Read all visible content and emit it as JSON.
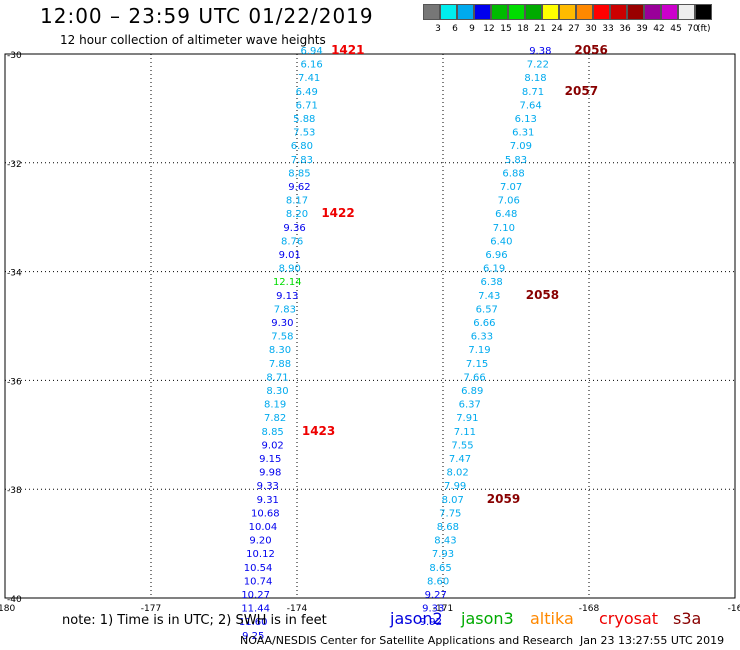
{
  "header": {
    "title": "12:00 – 23:59 UTC 01/22/2019",
    "subtitle": "12 hour collection of altimeter wave heights"
  },
  "scale": {
    "colors": [
      "#777777",
      "#00eeee",
      "#00aaee",
      "#0000ee",
      "#00bb00",
      "#00dd00",
      "#00aa00",
      "#ffff00",
      "#ffbb00",
      "#ff8800",
      "#ff0000",
      "#cc0000",
      "#990000",
      "#990099",
      "#cc00cc",
      "#eeeeee",
      "#000000"
    ],
    "labels": [
      "3",
      "6",
      "9",
      "12",
      "15",
      "18",
      "21",
      "24",
      "27",
      "30",
      "33",
      "36",
      "39",
      "42",
      "45",
      "70"
    ],
    "unit": "(ft)"
  },
  "chart_data": {
    "type": "scatter",
    "x_ticks": [
      "-180",
      "-177",
      "-174",
      "-171",
      "-168",
      "-16"
    ],
    "y_ticks": [
      "-30",
      "-32",
      "-34",
      "-36",
      "-38",
      "-40"
    ],
    "xlim": [
      -180,
      -165
    ],
    "ylim": [
      -40,
      -30
    ],
    "grid": "dotted",
    "tracks": [
      {
        "points": [
          {
            "lon": -173.7,
            "lat": -30.0,
            "v": "6.94",
            "c": "#00aaee"
          },
          {
            "lon": -173.7,
            "lat": -30.25,
            "v": "6.16",
            "c": "#00aaee"
          },
          {
            "lon": -173.75,
            "lat": -30.5,
            "v": "7.41",
            "c": "#00aaee"
          },
          {
            "lon": -173.8,
            "lat": -30.75,
            "v": "6.49",
            "c": "#00aaee"
          },
          {
            "lon": -173.8,
            "lat": -31.0,
            "v": "6.71",
            "c": "#00aaee"
          },
          {
            "lon": -173.85,
            "lat": -31.25,
            "v": "5.88",
            "c": "#00aaee"
          },
          {
            "lon": -173.85,
            "lat": -31.5,
            "v": "7.53",
            "c": "#00aaee"
          },
          {
            "lon": -173.9,
            "lat": -31.75,
            "v": "6.80",
            "c": "#00aaee"
          },
          {
            "lon": -173.9,
            "lat": -32.0,
            "v": "7.83",
            "c": "#00aaee"
          },
          {
            "lon": -173.95,
            "lat": -32.25,
            "v": "8.85",
            "c": "#00aaee"
          },
          {
            "lon": -173.95,
            "lat": -32.5,
            "v": "9.62",
            "c": "#0000ee"
          },
          {
            "lon": -174.0,
            "lat": -32.75,
            "v": "8.17",
            "c": "#00aaee"
          },
          {
            "lon": -174.0,
            "lat": -33.0,
            "v": "8.20",
            "c": "#00aaee"
          },
          {
            "lon": -174.05,
            "lat": -33.25,
            "v": "9.36",
            "c": "#0000ee"
          },
          {
            "lon": -174.1,
            "lat": -33.5,
            "v": "8.76",
            "c": "#00aaee"
          },
          {
            "lon": -174.15,
            "lat": -33.75,
            "v": "9.01",
            "c": "#0000ee"
          },
          {
            "lon": -174.15,
            "lat": -34.0,
            "v": "8.90",
            "c": "#00aaee"
          },
          {
            "lon": -174.2,
            "lat": -34.25,
            "v": "12.14",
            "c": "#00dd00"
          },
          {
            "lon": -174.2,
            "lat": -34.5,
            "v": "9.13",
            "c": "#0000ee"
          },
          {
            "lon": -174.25,
            "lat": -34.75,
            "v": "7.83",
            "c": "#00aaee"
          },
          {
            "lon": -174.3,
            "lat": -35.0,
            "v": "9.30",
            "c": "#0000ee"
          },
          {
            "lon": -174.3,
            "lat": -35.25,
            "v": "7.58",
            "c": "#00aaee"
          },
          {
            "lon": -174.35,
            "lat": -35.5,
            "v": "8.30",
            "c": "#00aaee"
          },
          {
            "lon": -174.35,
            "lat": -35.75,
            "v": "7.88",
            "c": "#00aaee"
          },
          {
            "lon": -174.4,
            "lat": -36.0,
            "v": "8.71",
            "c": "#00aaee"
          },
          {
            "lon": -174.4,
            "lat": -36.25,
            "v": "8.30",
            "c": "#00aaee"
          },
          {
            "lon": -174.45,
            "lat": -36.5,
            "v": "8.19",
            "c": "#00aaee"
          },
          {
            "lon": -174.45,
            "lat": -36.75,
            "v": "7.82",
            "c": "#00aaee"
          },
          {
            "lon": -174.5,
            "lat": -37.0,
            "v": "8.85",
            "c": "#00aaee"
          },
          {
            "lon": -174.5,
            "lat": -37.25,
            "v": "9.02",
            "c": "#0000ee"
          },
          {
            "lon": -174.55,
            "lat": -37.5,
            "v": "9.15",
            "c": "#0000ee"
          },
          {
            "lon": -174.55,
            "lat": -37.75,
            "v": "9.98",
            "c": "#0000ee"
          },
          {
            "lon": -174.6,
            "lat": -38.0,
            "v": "9.33",
            "c": "#0000ee"
          },
          {
            "lon": -174.6,
            "lat": -38.25,
            "v": "9.31",
            "c": "#0000ee"
          },
          {
            "lon": -174.65,
            "lat": -38.5,
            "v": "10.68",
            "c": "#0000ee"
          },
          {
            "lon": -174.7,
            "lat": -38.75,
            "v": "10.04",
            "c": "#0000ee"
          },
          {
            "lon": -174.75,
            "lat": -39.0,
            "v": "9.20",
            "c": "#0000ee"
          },
          {
            "lon": -174.75,
            "lat": -39.25,
            "v": "10.12",
            "c": "#0000ee"
          },
          {
            "lon": -174.8,
            "lat": -39.5,
            "v": "10.54",
            "c": "#0000ee"
          },
          {
            "lon": -174.8,
            "lat": -39.75,
            "v": "10.74",
            "c": "#0000ee"
          },
          {
            "lon": -174.85,
            "lat": -40.0,
            "v": "10.27",
            "c": "#0000ee"
          },
          {
            "lon": -174.85,
            "lat": -40.25,
            "v": "11.44",
            "c": "#0000ee"
          },
          {
            "lon": -174.9,
            "lat": -40.5,
            "v": "11.60",
            "c": "#0000ee"
          },
          {
            "lon": -174.9,
            "lat": -40.75,
            "v": "9.25",
            "c": "#0000ee"
          }
        ],
        "times": [
          {
            "label": "1421",
            "lon": -173.3,
            "lat": -30.0,
            "color": "#ee0000"
          },
          {
            "label": "1422",
            "lon": -173.5,
            "lat": -33.0,
            "color": "#ee0000"
          },
          {
            "label": "1423",
            "lon": -173.9,
            "lat": -37.0,
            "color": "#ee0000"
          }
        ]
      },
      {
        "points": [
          {
            "lon": -169.0,
            "lat": -30.0,
            "v": "9.38",
            "c": "#0000ee"
          },
          {
            "lon": -169.05,
            "lat": -30.25,
            "v": "7.22",
            "c": "#00aaee"
          },
          {
            "lon": -169.1,
            "lat": -30.5,
            "v": "8.18",
            "c": "#00aaee"
          },
          {
            "lon": -169.15,
            "lat": -30.75,
            "v": "8.71",
            "c": "#00aaee"
          },
          {
            "lon": -169.2,
            "lat": -31.0,
            "v": "7.64",
            "c": "#00aaee"
          },
          {
            "lon": -169.3,
            "lat": -31.25,
            "v": "6.13",
            "c": "#00aaee"
          },
          {
            "lon": -169.35,
            "lat": -31.5,
            "v": "6.31",
            "c": "#00aaee"
          },
          {
            "lon": -169.4,
            "lat": -31.75,
            "v": "7.09",
            "c": "#00aaee"
          },
          {
            "lon": -169.5,
            "lat": -32.0,
            "v": "5.83",
            "c": "#00aaee"
          },
          {
            "lon": -169.55,
            "lat": -32.25,
            "v": "6.88",
            "c": "#00aaee"
          },
          {
            "lon": -169.6,
            "lat": -32.5,
            "v": "7.07",
            "c": "#00aaee"
          },
          {
            "lon": -169.65,
            "lat": -32.75,
            "v": "7.06",
            "c": "#00aaee"
          },
          {
            "lon": -169.7,
            "lat": -33.0,
            "v": "6.48",
            "c": "#00aaee"
          },
          {
            "lon": -169.75,
            "lat": -33.25,
            "v": "7.10",
            "c": "#00aaee"
          },
          {
            "lon": -169.8,
            "lat": -33.5,
            "v": "6.40",
            "c": "#00aaee"
          },
          {
            "lon": -169.9,
            "lat": -33.75,
            "v": "6.96",
            "c": "#00aaee"
          },
          {
            "lon": -169.95,
            "lat": -34.0,
            "v": "6.19",
            "c": "#00aaee"
          },
          {
            "lon": -170.0,
            "lat": -34.25,
            "v": "6.38",
            "c": "#00aaee"
          },
          {
            "lon": -170.05,
            "lat": -34.5,
            "v": "7.43",
            "c": "#00aaee"
          },
          {
            "lon": -170.1,
            "lat": -34.75,
            "v": "6.57",
            "c": "#00aaee"
          },
          {
            "lon": -170.15,
            "lat": -35.0,
            "v": "6.66",
            "c": "#00aaee"
          },
          {
            "lon": -170.2,
            "lat": -35.25,
            "v": "6.33",
            "c": "#00aaee"
          },
          {
            "lon": -170.25,
            "lat": -35.5,
            "v": "7.19",
            "c": "#00aaee"
          },
          {
            "lon": -170.3,
            "lat": -35.75,
            "v": "7.15",
            "c": "#00aaee"
          },
          {
            "lon": -170.35,
            "lat": -36.0,
            "v": "7.66",
            "c": "#00aaee"
          },
          {
            "lon": -170.4,
            "lat": -36.25,
            "v": "6.89",
            "c": "#00aaee"
          },
          {
            "lon": -170.45,
            "lat": -36.5,
            "v": "6.37",
            "c": "#00aaee"
          },
          {
            "lon": -170.5,
            "lat": -36.75,
            "v": "7.91",
            "c": "#00aaee"
          },
          {
            "lon": -170.55,
            "lat": -37.0,
            "v": "7.11",
            "c": "#00aaee"
          },
          {
            "lon": -170.6,
            "lat": -37.25,
            "v": "7.55",
            "c": "#00aaee"
          },
          {
            "lon": -170.65,
            "lat": -37.5,
            "v": "7.47",
            "c": "#00aaee"
          },
          {
            "lon": -170.7,
            "lat": -37.75,
            "v": "8.02",
            "c": "#00aaee"
          },
          {
            "lon": -170.75,
            "lat": -38.0,
            "v": "7.99",
            "c": "#00aaee"
          },
          {
            "lon": -170.8,
            "lat": -38.25,
            "v": "8.07",
            "c": "#00aaee"
          },
          {
            "lon": -170.85,
            "lat": -38.5,
            "v": "7.75",
            "c": "#00aaee"
          },
          {
            "lon": -170.9,
            "lat": -38.75,
            "v": "8.68",
            "c": "#00aaee"
          },
          {
            "lon": -170.95,
            "lat": -39.0,
            "v": "8.43",
            "c": "#00aaee"
          },
          {
            "lon": -171.0,
            "lat": -39.25,
            "v": "7.93",
            "c": "#00aaee"
          },
          {
            "lon": -171.05,
            "lat": -39.5,
            "v": "8.65",
            "c": "#00aaee"
          },
          {
            "lon": -171.1,
            "lat": -39.75,
            "v": "8.60",
            "c": "#00aaee"
          },
          {
            "lon": -171.15,
            "lat": -40.0,
            "v": "9.27",
            "c": "#0000ee"
          },
          {
            "lon": -171.2,
            "lat": -40.25,
            "v": "9.33",
            "c": "#0000ee"
          },
          {
            "lon": -171.25,
            "lat": -40.5,
            "v": "9.92",
            "c": "#0000ee"
          }
        ],
        "times": [
          {
            "label": "2056",
            "lon": -168.3,
            "lat": -30.0,
            "color": "#880000"
          },
          {
            "label": "2057",
            "lon": -168.5,
            "lat": -30.75,
            "color": "#880000"
          },
          {
            "label": "2058",
            "lon": -169.3,
            "lat": -34.5,
            "color": "#880000"
          },
          {
            "label": "2059",
            "lon": -170.1,
            "lat": -38.25,
            "color": "#880000"
          }
        ]
      }
    ]
  },
  "footer": {
    "note": "note:  1) Time is in UTC;  2) SWH is in feet",
    "satellites": [
      {
        "name": "jason2",
        "color": "#0000dd"
      },
      {
        "name": "jason3",
        "color": "#00aa00"
      },
      {
        "name": "altika",
        "color": "#ff8800"
      },
      {
        "name": "cryosat",
        "color": "#ee0000"
      },
      {
        "name": "s3a",
        "color": "#880000"
      }
    ],
    "credit": "NOAA/NESDIS Center for Satellite Applications and Research",
    "timestamp": "Jan 23 13:27:55 UTC 2019"
  }
}
